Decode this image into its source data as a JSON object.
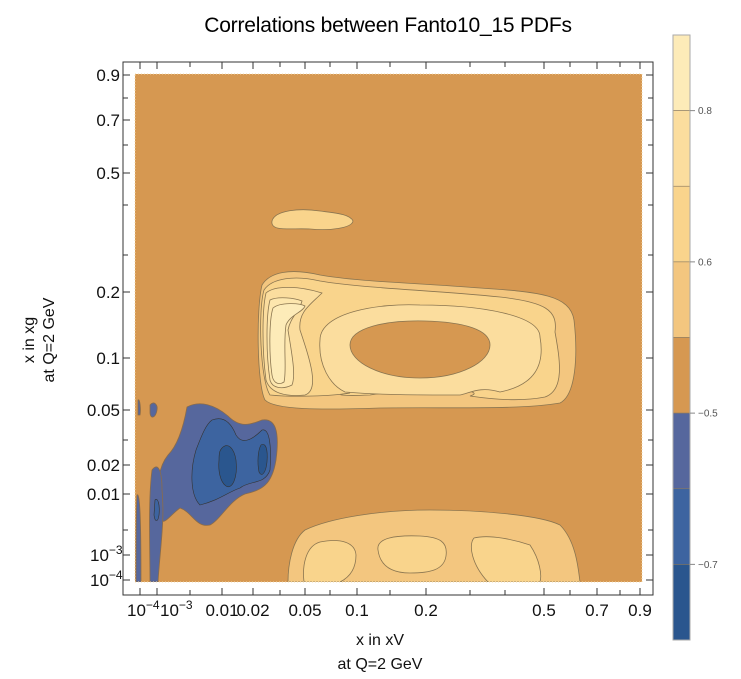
{
  "chart_data": {
    "type": "heatmap",
    "subtype": "contour",
    "title": "Correlations between Fanto10_15 PDFs",
    "xlabel": "x in xV",
    "xlabel_sub": "at Q=2 GeV",
    "ylabel": "x in xg",
    "ylabel_sub": "at Q=2 GeV",
    "xscale": "custom-log",
    "yscale": "custom-log",
    "xlim": [
      0.0001,
      0.9
    ],
    "ylim": [
      0.0001,
      0.9
    ],
    "x_ticks": [
      {
        "value": 0.0001,
        "label": "10",
        "sup": "−4"
      },
      {
        "value": 0.001,
        "label": "10",
        "sup": "−3"
      },
      {
        "value": 0.01,
        "label": "0.01",
        "sup": ""
      },
      {
        "value": 0.02,
        "label": "0.02",
        "sup": ""
      },
      {
        "value": 0.05,
        "label": "0.05",
        "sup": ""
      },
      {
        "value": 0.1,
        "label": "0.1",
        "sup": ""
      },
      {
        "value": 0.2,
        "label": "0.2",
        "sup": ""
      },
      {
        "value": 0.5,
        "label": "0.5",
        "sup": ""
      },
      {
        "value": 0.7,
        "label": "0.7",
        "sup": ""
      },
      {
        "value": 0.9,
        "label": "0.9",
        "sup": ""
      }
    ],
    "y_ticks": [
      {
        "value": 0.9,
        "label": "0.9",
        "sup": ""
      },
      {
        "value": 0.7,
        "label": "0.7",
        "sup": ""
      },
      {
        "value": 0.5,
        "label": "0.5",
        "sup": ""
      },
      {
        "value": 0.2,
        "label": "0.2",
        "sup": ""
      },
      {
        "value": 0.1,
        "label": "0.1",
        "sup": ""
      },
      {
        "value": 0.05,
        "label": "0.05",
        "sup": ""
      },
      {
        "value": 0.02,
        "label": "0.02",
        "sup": ""
      },
      {
        "value": 0.01,
        "label": "0.01",
        "sup": ""
      },
      {
        "value": 0.001,
        "label": "10",
        "sup": "−3"
      },
      {
        "value": 0.0001,
        "label": "10",
        "sup": "−4"
      }
    ],
    "legend": {
      "placement": "right",
      "type": "color-bar",
      "labels": [
        {
          "value": 0.8,
          "label": "0.8"
        },
        {
          "value": 0.6,
          "label": "0.6"
        },
        {
          "value": -0.5,
          "label": "−0.5"
        },
        {
          "value": -0.7,
          "label": "−0.7"
        }
      ],
      "bands": [
        {
          "from": 0.8,
          "to": 0.9,
          "color": "#fdebb8"
        },
        {
          "from": 0.7,
          "to": 0.8,
          "color": "#fbdd9e"
        },
        {
          "from": 0.6,
          "to": 0.7,
          "color": "#f9d48c"
        },
        {
          "from": 0.5,
          "to": 0.6,
          "color": "#f3c67f"
        },
        {
          "from": -0.5,
          "to": 0.5,
          "color": "#d69851"
        },
        {
          "from": -0.6,
          "to": -0.5,
          "color": "#56679d"
        },
        {
          "from": -0.7,
          "to": -0.6,
          "color": "#3d64a0"
        },
        {
          "from": -0.8,
          "to": -0.7,
          "color": "#2a568e"
        }
      ]
    },
    "background_color": "#d69851",
    "regions": [
      {
        "name": "positive-island-top",
        "level": 0.5,
        "x_range": [
          0.05,
          0.12
        ],
        "y_range": [
          0.3,
          0.4
        ]
      },
      {
        "name": "positive-ring-main",
        "level": 0.5,
        "x_range": [
          0.04,
          0.6
        ],
        "y_range": [
          0.04,
          0.2
        ]
      },
      {
        "name": "positive-ring-peak",
        "level": 0.8,
        "x_range": [
          0.04,
          0.06
        ],
        "y_range": [
          0.07,
          0.18
        ]
      },
      {
        "name": "positive-band-bottom",
        "level": 0.5,
        "x_range": [
          0.05,
          0.6
        ],
        "y_range": [
          0.0001,
          0.006
        ]
      },
      {
        "name": "negative-region",
        "level": -0.5,
        "x_range": [
          0.0001,
          0.03
        ],
        "y_range": [
          0.0001,
          0.06
        ]
      },
      {
        "name": "negative-core",
        "level": -0.7,
        "x_range": [
          0.005,
          0.015
        ],
        "y_range": [
          0.01,
          0.03
        ]
      }
    ]
  }
}
